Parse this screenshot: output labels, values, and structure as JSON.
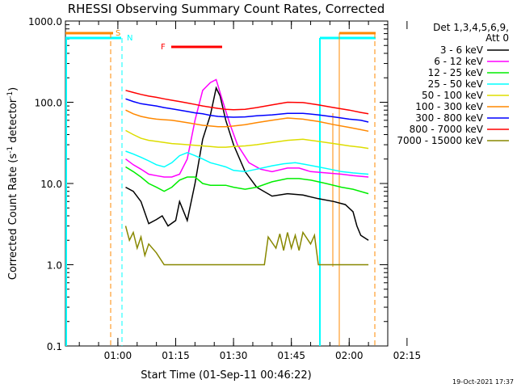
{
  "chart_data": {
    "type": "line",
    "title": "RHESSI Observing Summary Count Rates, Corrected",
    "xlabel": "Start Time (01-Sep-11 00:46:22)",
    "ylabel_main": "Corrected Count Rate (s",
    "ylabel_sup1": "-1",
    "ylabel_mid": " detector",
    "ylabel_sup2": "-1",
    "ylabel_end": ")",
    "yscale": "log",
    "xlim_min": [
      46.4,
      130
    ],
    "ylim": [
      0.1,
      1000
    ],
    "x_ticks": [
      {
        "label": "01:00",
        "min": 60
      },
      {
        "label": "01:15",
        "min": 75
      },
      {
        "label": "01:30",
        "min": 90
      },
      {
        "label": "01:45",
        "min": 105
      },
      {
        "label": "02:00",
        "min": 120
      },
      {
        "label": "02:15",
        "min": 135
      }
    ],
    "y_ticks": [
      {
        "label": "1000.0",
        "v": 1000
      },
      {
        "label": "100.0",
        "v": 100
      },
      {
        "label": "10.0",
        "v": 10
      },
      {
        "label": "1.0",
        "v": 1
      },
      {
        "label": "0.1",
        "v": 0.1
      }
    ],
    "legend_header": "Det 1,3,4,5,6,9,",
    "legend_header2": "Att 0",
    "series": [
      {
        "name": "3 - 6 keV",
        "color": "#000000",
        "points": [
          [
            62,
            9
          ],
          [
            64,
            8
          ],
          [
            66,
            6
          ],
          [
            68,
            3.2
          ],
          [
            70,
            3.6
          ],
          [
            71.5,
            4
          ],
          [
            73,
            3
          ],
          [
            75,
            3.5
          ],
          [
            76,
            6
          ],
          [
            78,
            3.5
          ],
          [
            80,
            10
          ],
          [
            82,
            35
          ],
          [
            84,
            70
          ],
          [
            85.5,
            150
          ],
          [
            86.5,
            120
          ],
          [
            88,
            60
          ],
          [
            90,
            30
          ],
          [
            93,
            14
          ],
          [
            96,
            9
          ],
          [
            100,
            7
          ],
          [
            104,
            7.5
          ],
          [
            108,
            7.2
          ],
          [
            112,
            6.5
          ],
          [
            116,
            6
          ],
          [
            119,
            5.5
          ],
          [
            121,
            4.5
          ],
          [
            122,
            3
          ],
          [
            123,
            2.3
          ],
          [
            125,
            2
          ]
        ]
      },
      {
        "name": "6 - 12 keV",
        "color": "#ff00ff",
        "points": [
          [
            62,
            20
          ],
          [
            64,
            17
          ],
          [
            66,
            15
          ],
          [
            68,
            13
          ],
          [
            70,
            12.5
          ],
          [
            72,
            12
          ],
          [
            74,
            12
          ],
          [
            76,
            13
          ],
          [
            78,
            20
          ],
          [
            80,
            60
          ],
          [
            82,
            140
          ],
          [
            84,
            175
          ],
          [
            85.5,
            190
          ],
          [
            87,
            110
          ],
          [
            89,
            55
          ],
          [
            91,
            30
          ],
          [
            94,
            18
          ],
          [
            97,
            15
          ],
          [
            100,
            14
          ],
          [
            104,
            15.5
          ],
          [
            107,
            15.5
          ],
          [
            110,
            14
          ],
          [
            114,
            13.5
          ],
          [
            118,
            13
          ],
          [
            121,
            12.5
          ],
          [
            125,
            12
          ]
        ]
      },
      {
        "name": "12 - 25 keV",
        "color": "#00ee00",
        "points": [
          [
            62,
            16
          ],
          [
            64,
            14
          ],
          [
            66,
            12
          ],
          [
            68,
            10
          ],
          [
            70,
            9
          ],
          [
            72,
            8
          ],
          [
            74,
            9
          ],
          [
            76,
            11
          ],
          [
            78,
            12
          ],
          [
            80,
            12
          ],
          [
            82,
            10
          ],
          [
            84,
            9.5
          ],
          [
            86,
            9.5
          ],
          [
            88,
            9.5
          ],
          [
            90,
            9
          ],
          [
            93,
            8.5
          ],
          [
            96,
            9
          ],
          [
            100,
            10.5
          ],
          [
            104,
            11.5
          ],
          [
            107,
            11.5
          ],
          [
            110,
            11
          ],
          [
            114,
            10
          ],
          [
            118,
            9
          ],
          [
            121,
            8.5
          ],
          [
            125,
            7.5
          ]
        ]
      },
      {
        "name": "25 - 50 keV",
        "color": "#00ffff",
        "points": [
          [
            62,
            25
          ],
          [
            64,
            23
          ],
          [
            66,
            21
          ],
          [
            68,
            19
          ],
          [
            70,
            17
          ],
          [
            72,
            16
          ],
          [
            74,
            18
          ],
          [
            76,
            22
          ],
          [
            78,
            24
          ],
          [
            80,
            22
          ],
          [
            82,
            20
          ],
          [
            84,
            18
          ],
          [
            86,
            17
          ],
          [
            88,
            16
          ],
          [
            90,
            14.5
          ],
          [
            93,
            14
          ],
          [
            96,
            15
          ],
          [
            100,
            16.5
          ],
          [
            103,
            17.5
          ],
          [
            106,
            18
          ],
          [
            109,
            17
          ],
          [
            112,
            16
          ],
          [
            115,
            15
          ],
          [
            118,
            14
          ],
          [
            121,
            13.5
          ],
          [
            125,
            13
          ]
        ]
      },
      {
        "name": "50 - 100 keV",
        "color": "#dddd00",
        "points": [
          [
            62,
            45
          ],
          [
            64,
            40
          ],
          [
            66,
            36
          ],
          [
            68,
            34
          ],
          [
            70,
            33
          ],
          [
            72,
            32
          ],
          [
            74,
            31
          ],
          [
            76,
            30.5
          ],
          [
            78,
            30
          ],
          [
            80,
            29.5
          ],
          [
            82,
            29
          ],
          [
            84,
            28.5
          ],
          [
            86,
            28
          ],
          [
            88,
            28
          ],
          [
            90,
            28.5
          ],
          [
            93,
            29
          ],
          [
            96,
            30
          ],
          [
            100,
            32
          ],
          [
            104,
            34
          ],
          [
            108,
            35
          ],
          [
            112,
            33
          ],
          [
            116,
            31
          ],
          [
            120,
            29
          ],
          [
            123,
            28
          ],
          [
            125,
            27
          ]
        ]
      },
      {
        "name": "100 - 300 keV",
        "color": "#ff8800",
        "points": [
          [
            62,
            80
          ],
          [
            64,
            72
          ],
          [
            66,
            67
          ],
          [
            68,
            64
          ],
          [
            70,
            62
          ],
          [
            72,
            61
          ],
          [
            74,
            60
          ],
          [
            76,
            58
          ],
          [
            78,
            56
          ],
          [
            80,
            54
          ],
          [
            82,
            52
          ],
          [
            84,
            51
          ],
          [
            86,
            50
          ],
          [
            88,
            50
          ],
          [
            90,
            51
          ],
          [
            93,
            53
          ],
          [
            96,
            56
          ],
          [
            100,
            60
          ],
          [
            104,
            64
          ],
          [
            108,
            62
          ],
          [
            112,
            58
          ],
          [
            116,
            53
          ],
          [
            120,
            49
          ],
          [
            123,
            46
          ],
          [
            125,
            44
          ]
        ]
      },
      {
        "name": "300 - 800 keV",
        "color": "#0000ff",
        "points": [
          [
            62,
            110
          ],
          [
            64,
            102
          ],
          [
            66,
            96
          ],
          [
            68,
            93
          ],
          [
            70,
            90
          ],
          [
            72,
            86
          ],
          [
            74,
            83
          ],
          [
            76,
            80
          ],
          [
            78,
            77
          ],
          [
            80,
            74
          ],
          [
            82,
            72
          ],
          [
            84,
            69
          ],
          [
            86,
            67
          ],
          [
            88,
            66
          ],
          [
            90,
            65.5
          ],
          [
            93,
            66
          ],
          [
            96,
            68
          ],
          [
            100,
            70
          ],
          [
            104,
            73
          ],
          [
            108,
            73
          ],
          [
            112,
            70
          ],
          [
            116,
            66
          ],
          [
            120,
            62
          ],
          [
            123,
            60
          ],
          [
            125,
            57
          ]
        ]
      },
      {
        "name": "800 - 7000 keV",
        "color": "#ff0000",
        "points": [
          [
            62,
            140
          ],
          [
            64,
            132
          ],
          [
            66,
            125
          ],
          [
            68,
            119
          ],
          [
            70,
            115
          ],
          [
            72,
            110
          ],
          [
            74,
            106
          ],
          [
            76,
            102
          ],
          [
            78,
            98
          ],
          [
            80,
            94
          ],
          [
            82,
            90
          ],
          [
            84,
            87
          ],
          [
            86,
            84
          ],
          [
            88,
            82
          ],
          [
            90,
            81
          ],
          [
            93,
            82
          ],
          [
            96,
            86
          ],
          [
            100,
            93
          ],
          [
            104,
            100
          ],
          [
            108,
            99
          ],
          [
            112,
            93
          ],
          [
            116,
            86
          ],
          [
            120,
            80
          ],
          [
            123,
            75
          ],
          [
            125,
            72
          ]
        ]
      },
      {
        "name": "7000 - 15000 keV",
        "color": "#888800",
        "points": [
          [
            62,
            3
          ],
          [
            63,
            2
          ],
          [
            64,
            2.5
          ],
          [
            65,
            1.6
          ],
          [
            66,
            2.2
          ],
          [
            67,
            1.3
          ],
          [
            68,
            1.8
          ],
          [
            70,
            1.4
          ],
          [
            72,
            1.0
          ],
          [
            98,
            1.0
          ],
          [
            99,
            2.2
          ],
          [
            101,
            1.6
          ],
          [
            102,
            2.4
          ],
          [
            103,
            1.5
          ],
          [
            104,
            2.5
          ],
          [
            105,
            1.6
          ],
          [
            106,
            2.3
          ],
          [
            107,
            1.5
          ],
          [
            108,
            2.5
          ],
          [
            110,
            1.8
          ],
          [
            111,
            2.3
          ],
          [
            112,
            1.0
          ],
          [
            125,
            1.0
          ]
        ]
      }
    ],
    "markers": [
      {
        "label": "S",
        "color": "#ff8800"
      },
      {
        "label": "N",
        "color": "#00ffff"
      },
      {
        "label": "F",
        "color": "#ff0000"
      }
    ],
    "footer_timestamp": "19-Oct-2021 17:37"
  }
}
